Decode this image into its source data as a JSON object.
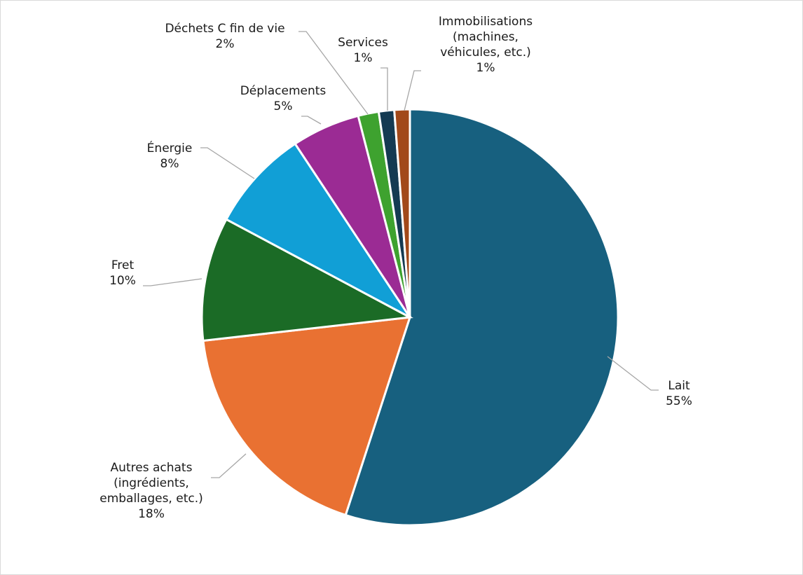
{
  "chart_data": {
    "type": "pie",
    "title": "",
    "slices": [
      {
        "label_lines": [
          "Lait"
        ],
        "value_label": "55%",
        "value": 55.0,
        "color": "#17607f"
      },
      {
        "label_lines": [
          "Autres achats",
          "(ingrédients,",
          "emballages, etc.)"
        ],
        "value_label": "18%",
        "value": 18.2,
        "color": "#e97132"
      },
      {
        "label_lines": [
          "Fret"
        ],
        "value_label": "10%",
        "value": 9.6,
        "color": "#1b6b26"
      },
      {
        "label_lines": [
          "Énergie"
        ],
        "value_label": "8%",
        "value": 7.9,
        "color": "#119fd6"
      },
      {
        "label_lines": [
          "Déplacements"
        ],
        "value_label": "5%",
        "value": 5.3,
        "color": "#9b2b94"
      },
      {
        "label_lines": [
          "Déchets C fin de vie"
        ],
        "value_label": "2%",
        "value": 1.6,
        "color": "#3ea22f"
      },
      {
        "label_lines": [
          "Services"
        ],
        "value_label": "1%",
        "value": 1.2,
        "color": "#143a52"
      },
      {
        "label_lines": [
          "Immobilisations",
          "(machines,",
          "véhicules, etc.)"
        ],
        "value_label": "1%",
        "value": 1.2,
        "color": "#a2491a"
      }
    ]
  }
}
